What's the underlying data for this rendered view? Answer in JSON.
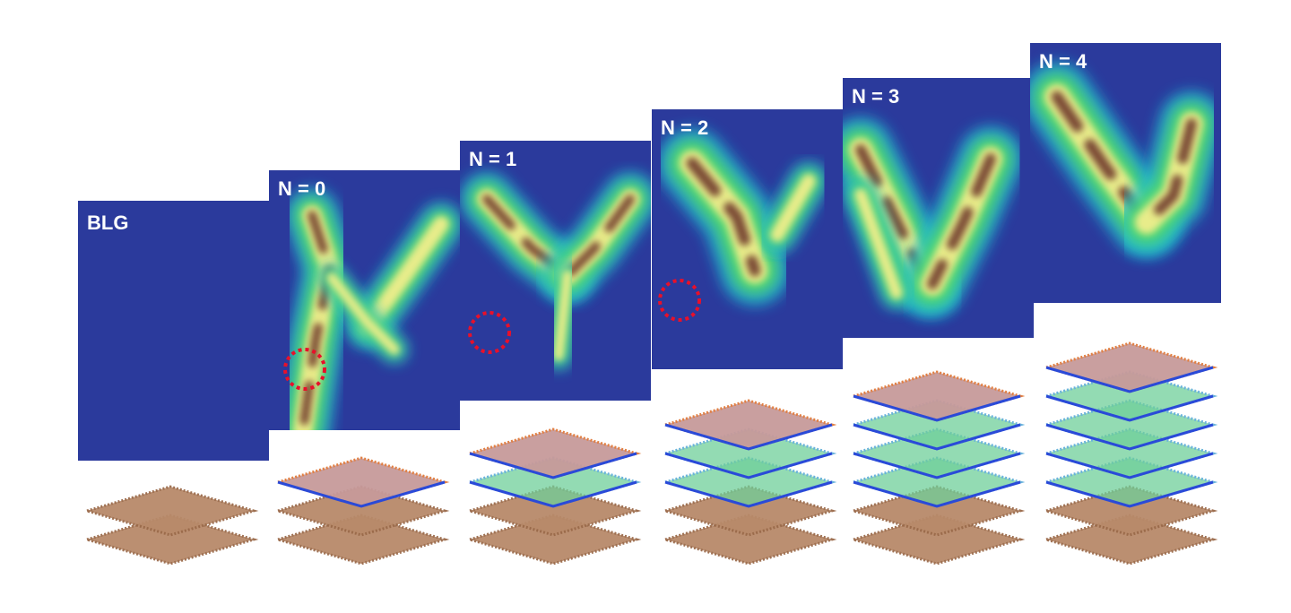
{
  "panels": [
    {
      "label": "BLG"
    },
    {
      "label": "N = 0"
    },
    {
      "label": "N = 1"
    },
    {
      "label": "N = 2"
    },
    {
      "label": "N = 3"
    },
    {
      "label": "N = 4"
    }
  ]
}
